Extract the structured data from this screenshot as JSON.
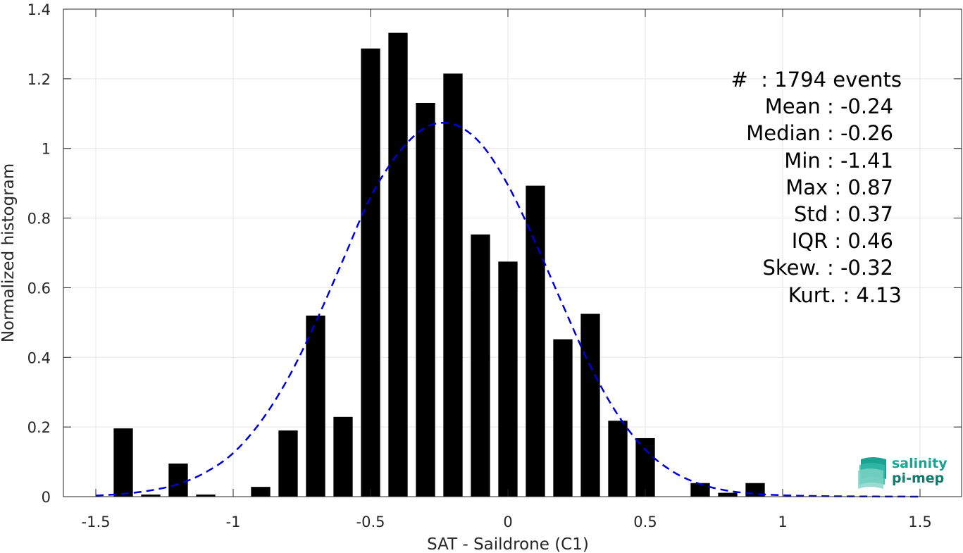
{
  "chart_data": {
    "type": "bar",
    "xlabel": "SAT - Saildrone (C1)",
    "ylabel": "Normalized histogram",
    "xlim": [
      -1.6,
      1.6
    ],
    "ylim": [
      0,
      1.4
    ],
    "x_ticks": [
      "-1.5",
      "-1",
      "-0.5",
      "0",
      "0.5",
      "1",
      "1.5"
    ],
    "y_ticks": [
      "0",
      "0.2",
      "0.4",
      "0.6",
      "0.8",
      "1",
      "1.2",
      "1.4"
    ],
    "grid": true,
    "bars": {
      "x": [
        -1.4,
        -1.3,
        -1.2,
        -1.1,
        -0.9,
        -0.8,
        -0.7,
        -0.6,
        -0.5,
        -0.4,
        -0.3,
        -0.2,
        -0.1,
        0.0,
        0.1,
        0.2,
        0.3,
        0.4,
        0.5,
        0.7,
        0.8,
        0.9
      ],
      "values": [
        0.196,
        0.006,
        0.095,
        0.006,
        0.028,
        0.19,
        0.52,
        0.229,
        1.287,
        1.332,
        1.131,
        1.215,
        0.753,
        0.675,
        0.893,
        0.452,
        0.525,
        0.218,
        0.168,
        0.039,
        0.011,
        0.039
      ],
      "color": "#000000"
    },
    "fit_curve": {
      "style": "dashed",
      "color": "#0000dd",
      "x": [
        -1.5,
        -1.4,
        -1.3,
        -1.2,
        -1.1,
        -1.0,
        -0.9,
        -0.8,
        -0.7,
        -0.6,
        -0.5,
        -0.4,
        -0.3,
        -0.2,
        -0.1,
        0.0,
        0.1,
        0.2,
        0.3,
        0.4,
        0.5,
        0.6,
        0.7,
        0.8,
        0.9,
        1.0,
        1.1,
        1.2,
        1.3,
        1.4,
        1.5
      ],
      "y": [
        0.003,
        0.008,
        0.018,
        0.036,
        0.07,
        0.125,
        0.215,
        0.34,
        0.5,
        0.68,
        0.86,
        0.985,
        1.06,
        1.07,
        1.015,
        0.895,
        0.73,
        0.55,
        0.375,
        0.235,
        0.135,
        0.072,
        0.036,
        0.017,
        0.008,
        0.004,
        0.002,
        0.001,
        0.0005,
        0.0002,
        0.0001
      ]
    },
    "stats": [
      "#  : 1794 events",
      "Mean : -0.24",
      "Median : -0.26",
      "Min : -1.41",
      "Max : 0.87",
      "Std : 0.37",
      "IQR : 0.46",
      "Skew. : -0.32",
      "Kurt. : 4.13"
    ]
  },
  "logo": {
    "line1": "salinity",
    "line2": "pi-mep"
  }
}
